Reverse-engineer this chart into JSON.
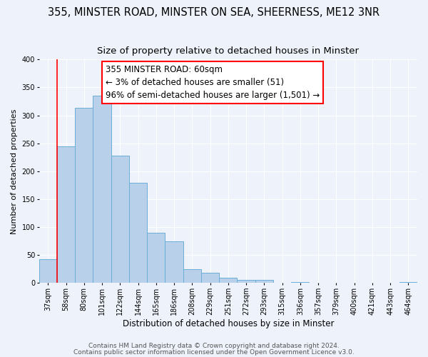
{
  "title": "355, MINSTER ROAD, MINSTER ON SEA, SHEERNESS, ME12 3NR",
  "subtitle": "Size of property relative to detached houses in Minster",
  "xlabel": "Distribution of detached houses by size in Minster",
  "ylabel": "Number of detached properties",
  "bin_labels": [
    "37sqm",
    "58sqm",
    "80sqm",
    "101sqm",
    "122sqm",
    "144sqm",
    "165sqm",
    "186sqm",
    "208sqm",
    "229sqm",
    "251sqm",
    "272sqm",
    "293sqm",
    "315sqm",
    "336sqm",
    "357sqm",
    "379sqm",
    "400sqm",
    "421sqm",
    "443sqm",
    "464sqm"
  ],
  "bar_heights": [
    43,
    245,
    313,
    335,
    228,
    180,
    90,
    75,
    25,
    18,
    10,
    5,
    6,
    0,
    2,
    0,
    0,
    0,
    0,
    0,
    2
  ],
  "bar_color": "#B8D0EA",
  "bar_edge_color": "#6AAED6",
  "ylim": [
    0,
    400
  ],
  "yticks": [
    0,
    50,
    100,
    150,
    200,
    250,
    300,
    350,
    400
  ],
  "marker_color": "red",
  "annotation_title": "355 MINSTER ROAD: 60sqm",
  "annotation_line1": "← 3% of detached houses are smaller (51)",
  "annotation_line2": "96% of semi-detached houses are larger (1,501) →",
  "annotation_box_color": "white",
  "annotation_box_edge_color": "red",
  "footer1": "Contains HM Land Registry data © Crown copyright and database right 2024.",
  "footer2": "Contains public sector information licensed under the Open Government Licence v3.0.",
  "background_color": "#EEF2FA",
  "title_fontsize": 10.5,
  "subtitle_fontsize": 9.5,
  "xlabel_fontsize": 8.5,
  "ylabel_fontsize": 8,
  "tick_fontsize": 7,
  "annotation_fontsize": 8.5,
  "footer_fontsize": 6.5
}
